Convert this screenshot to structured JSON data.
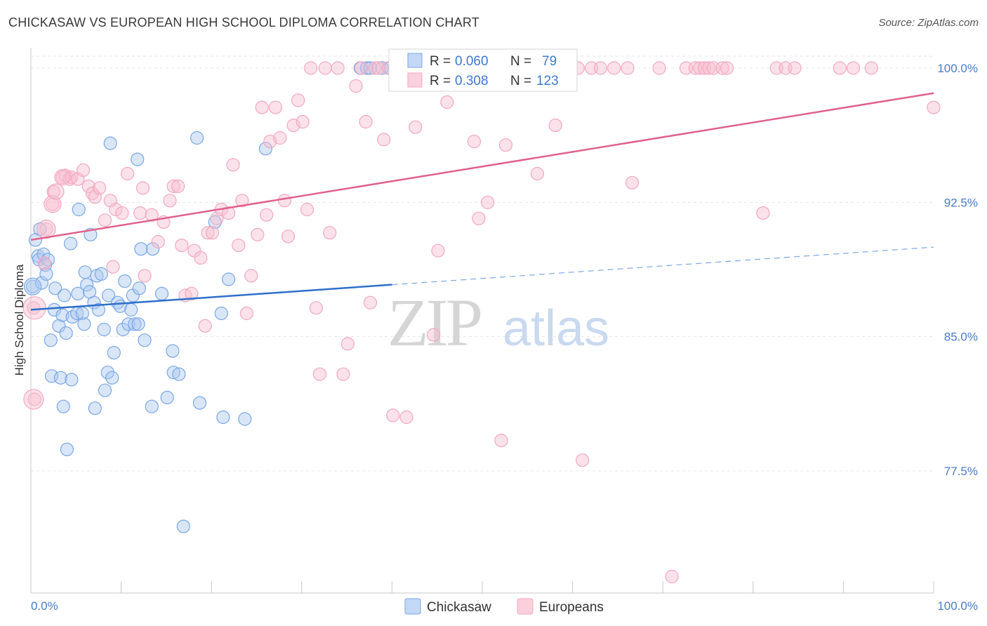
{
  "title": "CHICKASAW VS EUROPEAN HIGH SCHOOL DIPLOMA CORRELATION CHART",
  "source": "Source: ZipAtlas.com",
  "watermark": {
    "zip": "ZIP",
    "atlas": "atlas"
  },
  "legend_box": {
    "rows": [
      {
        "r_label": "R = ",
        "r_value": "0.060",
        "n_label": "N = ",
        "n_value": "79",
        "color": "#7aa7e6"
      },
      {
        "r_label": "R = ",
        "r_value": "0.308",
        "n_label": "N = ",
        "n_value": "123",
        "color": "#f2a7bf"
      }
    ]
  },
  "chart_data": {
    "type": "scatter",
    "title": "CHICKASAW VS EUROPEAN HIGH SCHOOL DIPLOMA CORRELATION CHART",
    "xlabel": "",
    "ylabel": "High School Diploma",
    "xlim": [
      0,
      100
    ],
    "ylim": [
      71.0,
      101.0
    ],
    "x_tick_labels": [
      "0.0%",
      "100.0%"
    ],
    "y_ticks": [
      77.5,
      85.0,
      92.5,
      100.0
    ],
    "y_tick_labels": [
      "77.5%",
      "85.0%",
      "92.5%",
      "100.0%"
    ],
    "grid": "horizontal dashed",
    "legend_position": "bottom-center",
    "series": [
      {
        "name": "Chickasaw",
        "color": "#7aa7e6",
        "line_color": "#2f6fcb",
        "trend": {
          "x0": 0,
          "y0": 86.5,
          "x1": 40,
          "y1": 87.9,
          "dash_to_x": 100,
          "dash_to_y": 90.0
        },
        "points": [
          [
            0.2,
            87.8
          ],
          [
            0.5,
            90.4
          ],
          [
            0.8,
            89.5
          ],
          [
            0.9,
            89.3
          ],
          [
            1.0,
            91.0
          ],
          [
            1.2,
            88.0
          ],
          [
            1.4,
            89.6
          ],
          [
            1.6,
            89.0
          ],
          [
            1.7,
            88.5
          ],
          [
            1.9,
            89.3
          ],
          [
            2.2,
            84.8
          ],
          [
            2.3,
            82.8
          ],
          [
            2.6,
            86.5
          ],
          [
            2.7,
            87.7
          ],
          [
            3.1,
            85.6
          ],
          [
            3.3,
            82.7
          ],
          [
            3.5,
            86.2
          ],
          [
            3.6,
            81.1
          ],
          [
            3.7,
            87.3
          ],
          [
            3.9,
            85.2
          ],
          [
            4.0,
            78.7
          ],
          [
            4.4,
            90.2
          ],
          [
            4.5,
            82.6
          ],
          [
            4.6,
            86.1
          ],
          [
            5.1,
            86.3
          ],
          [
            5.2,
            87.4
          ],
          [
            5.3,
            92.1
          ],
          [
            5.7,
            86.3
          ],
          [
            5.9,
            85.7
          ],
          [
            6.0,
            88.6
          ],
          [
            6.2,
            87.9
          ],
          [
            6.5,
            87.5
          ],
          [
            6.6,
            90.7
          ],
          [
            7.0,
            86.9
          ],
          [
            7.1,
            81.0
          ],
          [
            7.3,
            88.4
          ],
          [
            7.5,
            86.5
          ],
          [
            7.8,
            88.5
          ],
          [
            8.1,
            85.4
          ],
          [
            8.2,
            82.0
          ],
          [
            8.5,
            83.0
          ],
          [
            8.6,
            87.3
          ],
          [
            8.8,
            95.8
          ],
          [
            9.0,
            82.7
          ],
          [
            9.2,
            84.1
          ],
          [
            9.6,
            86.9
          ],
          [
            9.9,
            86.7
          ],
          [
            10.2,
            85.4
          ],
          [
            10.4,
            88.1
          ],
          [
            10.8,
            85.7
          ],
          [
            11.1,
            86.5
          ],
          [
            11.3,
            87.3
          ],
          [
            11.5,
            85.7
          ],
          [
            11.8,
            94.9
          ],
          [
            11.9,
            85.7
          ],
          [
            12.0,
            87.7
          ],
          [
            12.2,
            89.9
          ],
          [
            12.6,
            84.8
          ],
          [
            13.4,
            81.1
          ],
          [
            13.5,
            89.9
          ],
          [
            14.5,
            87.4
          ],
          [
            15.1,
            81.6
          ],
          [
            15.7,
            84.2
          ],
          [
            15.8,
            83.0
          ],
          [
            16.4,
            82.9
          ],
          [
            16.9,
            74.4
          ],
          [
            18.4,
            96.1
          ],
          [
            18.7,
            81.3
          ],
          [
            20.4,
            91.4
          ],
          [
            21.1,
            86.3
          ],
          [
            21.3,
            80.5
          ],
          [
            21.9,
            88.2
          ],
          [
            23.7,
            80.4
          ],
          [
            26.0,
            95.5
          ],
          [
            36.5,
            100.0
          ],
          [
            37.2,
            100.0
          ],
          [
            37.6,
            100.0
          ],
          [
            38.9,
            100.0
          ],
          [
            39.8,
            100.0
          ]
        ]
      },
      {
        "name": "Europeans",
        "color": "#f2a7bf",
        "line_color": "#e0618c",
        "trend": {
          "x0": 0,
          "y0": 90.4,
          "x1": 100,
          "y1": 98.6
        },
        "points": [
          [
            0.3,
            86.6
          ],
          [
            0.4,
            81.5
          ],
          [
            1.5,
            89.1
          ],
          [
            1.7,
            91.0
          ],
          [
            2.4,
            92.4
          ],
          [
            2.5,
            93.1
          ],
          [
            3.5,
            93.9
          ],
          [
            3.8,
            94.0
          ],
          [
            4.3,
            93.8
          ],
          [
            4.5,
            93.9
          ],
          [
            5.2,
            93.8
          ],
          [
            5.8,
            94.3
          ],
          [
            6.4,
            93.4
          ],
          [
            6.8,
            93.0
          ],
          [
            7.1,
            92.8
          ],
          [
            7.6,
            93.3
          ],
          [
            8.2,
            91.5
          ],
          [
            8.8,
            92.6
          ],
          [
            9.1,
            88.9
          ],
          [
            9.4,
            92.1
          ],
          [
            10.1,
            91.9
          ],
          [
            10.7,
            94.1
          ],
          [
            12.1,
            91.9
          ],
          [
            12.4,
            93.3
          ],
          [
            12.6,
            88.4
          ],
          [
            13.4,
            91.8
          ],
          [
            14.1,
            90.3
          ],
          [
            14.7,
            91.4
          ],
          [
            15.4,
            92.6
          ],
          [
            15.8,
            93.4
          ],
          [
            16.3,
            93.4
          ],
          [
            16.7,
            90.1
          ],
          [
            17.1,
            87.3
          ],
          [
            17.8,
            87.4
          ],
          [
            18.1,
            89.8
          ],
          [
            18.8,
            89.4
          ],
          [
            19.3,
            85.6
          ],
          [
            19.6,
            90.8
          ],
          [
            20.1,
            90.8
          ],
          [
            20.6,
            91.6
          ],
          [
            21.1,
            92.1
          ],
          [
            21.9,
            91.9
          ],
          [
            22.4,
            94.6
          ],
          [
            23.0,
            90.1
          ],
          [
            23.4,
            92.6
          ],
          [
            23.9,
            86.3
          ],
          [
            24.4,
            88.4
          ],
          [
            25.1,
            90.7
          ],
          [
            25.6,
            97.8
          ],
          [
            26.1,
            91.8
          ],
          [
            26.5,
            95.9
          ],
          [
            27.1,
            97.8
          ],
          [
            27.6,
            96.1
          ],
          [
            28.1,
            92.6
          ],
          [
            28.5,
            90.6
          ],
          [
            29.1,
            96.8
          ],
          [
            29.6,
            98.2
          ],
          [
            30.1,
            97.0
          ],
          [
            30.6,
            92.1
          ],
          [
            31.0,
            100.0
          ],
          [
            31.6,
            86.6
          ],
          [
            32.0,
            82.9
          ],
          [
            32.6,
            100.0
          ],
          [
            33.1,
            90.8
          ],
          [
            34.0,
            100.0
          ],
          [
            34.6,
            82.9
          ],
          [
            35.1,
            84.6
          ],
          [
            36.0,
            99.0
          ],
          [
            36.6,
            100.0
          ],
          [
            37.1,
            97.0
          ],
          [
            37.6,
            86.9
          ],
          [
            38.1,
            100.0
          ],
          [
            38.5,
            100.0
          ],
          [
            39.1,
            96.0
          ],
          [
            39.6,
            100.0
          ],
          [
            40.1,
            80.6
          ],
          [
            40.6,
            100.0
          ],
          [
            41.1,
            100.0
          ],
          [
            41.6,
            80.5
          ],
          [
            42.1,
            100.0
          ],
          [
            42.6,
            96.7
          ],
          [
            43.6,
            100.0
          ],
          [
            44.6,
            85.1
          ],
          [
            45.1,
            89.8
          ],
          [
            46.1,
            98.1
          ],
          [
            47.1,
            100.0
          ],
          [
            48.1,
            100.0
          ],
          [
            49.1,
            95.9
          ],
          [
            49.6,
            91.6
          ],
          [
            50.6,
            92.5
          ],
          [
            51.1,
            100.0
          ],
          [
            52.1,
            79.2
          ],
          [
            52.6,
            95.7
          ],
          [
            54.1,
            100.0
          ],
          [
            55.1,
            100.0
          ],
          [
            56.1,
            94.1
          ],
          [
            57.1,
            100.0
          ],
          [
            58.1,
            96.8
          ],
          [
            60.6,
            100.0
          ],
          [
            61.1,
            78.1
          ],
          [
            62.1,
            100.0
          ],
          [
            63.1,
            100.0
          ],
          [
            64.6,
            100.0
          ],
          [
            66.1,
            100.0
          ],
          [
            66.6,
            93.6
          ],
          [
            69.6,
            100.0
          ],
          [
            71.0,
            71.6
          ],
          [
            72.6,
            100.0
          ],
          [
            73.6,
            100.0
          ],
          [
            74.1,
            100.0
          ],
          [
            74.6,
            100.0
          ],
          [
            75.1,
            100.0
          ],
          [
            75.6,
            100.0
          ],
          [
            76.6,
            100.0
          ],
          [
            77.1,
            100.0
          ],
          [
            81.1,
            91.9
          ],
          [
            82.6,
            100.0
          ],
          [
            83.6,
            100.0
          ],
          [
            84.6,
            100.0
          ],
          [
            89.6,
            100.0
          ],
          [
            91.1,
            100.0
          ],
          [
            93.1,
            100.0
          ],
          [
            100.0,
            97.8
          ]
        ]
      }
    ]
  }
}
